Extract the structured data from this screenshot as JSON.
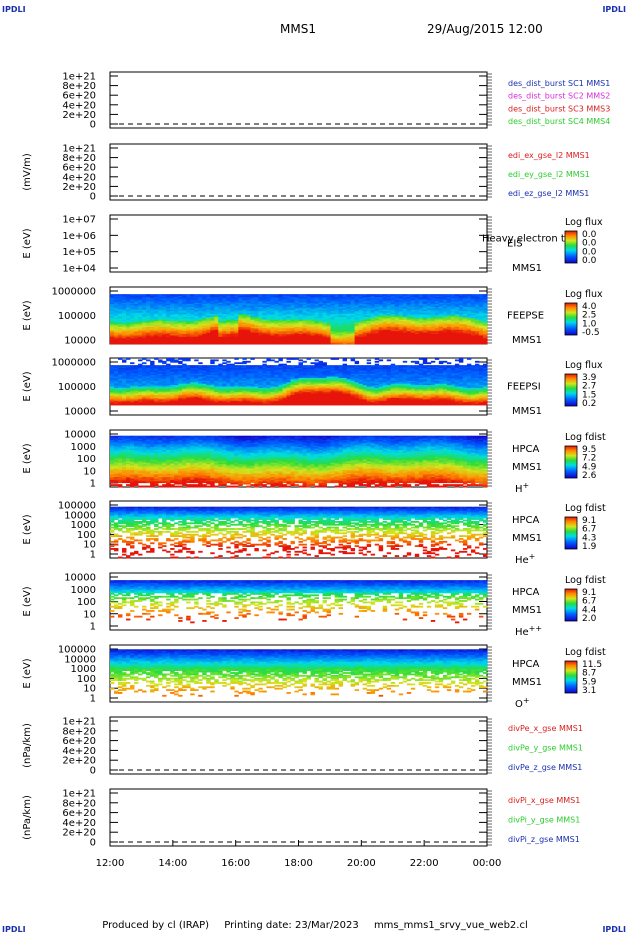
{
  "header": {
    "corner_label": "IPDLI",
    "spacecraft": "MMS1",
    "date": "29/Aug/2015 12:00"
  },
  "footer": {
    "produced": "Produced by cl (IRAP)",
    "printing": "Printing date: 23/Mar/2023",
    "file": "mms_mms1_srvy_vue_web2.cl"
  },
  "time_axis": {
    "ticks": [
      "12:00",
      "14:00",
      "16:00",
      "18:00",
      "20:00",
      "22:00",
      "00:00"
    ]
  },
  "colors": {
    "blue": "#1a2fb0",
    "magenta": "#d62dd6",
    "red": "#d81e1e",
    "green": "#2ecc2e"
  },
  "chart_data": [
    {
      "id": "p1",
      "type": "line",
      "ylabel": "",
      "yticks": [
        "1e+21",
        "8e+20",
        "6e+20",
        "4e+20",
        "2e+20",
        "0"
      ],
      "legend": [
        {
          "text": "des_dist_burst SC1 MMS1",
          "color": "#1a2fb0"
        },
        {
          "text": "des_dist_burst SC2 MMS2",
          "color": "#d62dd6"
        },
        {
          "text": "des_dist_burst SC3 MMS3",
          "color": "#d81e1e"
        },
        {
          "text": "des_dist_burst SC4 MMS4",
          "color": "#2ecc2e"
        }
      ]
    },
    {
      "id": "p2",
      "type": "line",
      "ylabel": "(mV/m)",
      "yticks": [
        "1e+21",
        "8e+20",
        "6e+20",
        "4e+20",
        "2e+20",
        "0"
      ],
      "legend": [
        {
          "text": "edi_ex_gse_l2 MMS1",
          "color": "#d81e1e"
        },
        {
          "text": "edi_ey_gse_l2 MMS1",
          "color": "#2ecc2e"
        },
        {
          "text": "edi_ez_gse_l2 MMS1",
          "color": "#1a2fb0"
        }
      ]
    },
    {
      "id": "p3",
      "type": "heatmap",
      "ylabel": "E (eV)",
      "yticks": [
        "1e+07",
        "1e+06",
        "1e+05",
        "1e+04"
      ],
      "side_labels": [
        "EIS",
        "MMS1"
      ],
      "overlay_text": "Heavy electron to",
      "cbar_title": "Log flux",
      "cbar_values": [
        "0.0",
        "0.0",
        "0.0",
        "0.0"
      ],
      "fill": "empty"
    },
    {
      "id": "p4",
      "type": "heatmap",
      "ylabel": "E (eV)",
      "yticks": [
        "1000000",
        "100000",
        "10000"
      ],
      "side_labels": [
        "FEEPSE",
        "MMS1"
      ],
      "cbar_title": "Log flux",
      "cbar_values": [
        "4.0",
        "2.5",
        "1.0",
        "-0.5"
      ],
      "fill": "feepse"
    },
    {
      "id": "p5",
      "type": "heatmap",
      "ylabel": "E (eV)",
      "yticks": [
        "1000000",
        "100000",
        "10000"
      ],
      "side_labels": [
        "FEEPSI",
        "MMS1"
      ],
      "cbar_title": "Log flux",
      "cbar_values": [
        "3.9",
        "2.7",
        "1.5",
        "0.2"
      ],
      "fill": "feepsi"
    },
    {
      "id": "p6",
      "type": "heatmap",
      "ylabel": "E (eV)",
      "yticks": [
        "10000",
        "1000",
        "100",
        "10",
        "1"
      ],
      "side_labels": [
        "HPCA",
        "MMS1",
        "H+"
      ],
      "cbar_title": "Log fdist",
      "cbar_values": [
        "9.5",
        "7.2",
        "4.9",
        "2.6"
      ],
      "fill": "hplus"
    },
    {
      "id": "p7",
      "type": "heatmap",
      "ylabel": "E (eV)",
      "yticks": [
        "100000",
        "10000",
        "1000",
        "100",
        "10",
        "1"
      ],
      "side_labels": [
        "HPCA",
        "MMS1",
        "He+"
      ],
      "cbar_title": "Log fdist",
      "cbar_values": [
        "9.1",
        "6.7",
        "4.3",
        "1.9"
      ],
      "fill": "heplus"
    },
    {
      "id": "p8",
      "type": "heatmap",
      "ylabel": "E (eV)",
      "yticks": [
        "10000",
        "1000",
        "100",
        "10",
        "1"
      ],
      "side_labels": [
        "HPCA",
        "MMS1",
        "He++"
      ],
      "cbar_title": "Log fdist",
      "cbar_values": [
        "9.1",
        "6.7",
        "4.4",
        "2.0"
      ],
      "fill": "heplusplus"
    },
    {
      "id": "p9",
      "type": "heatmap",
      "ylabel": "E (eV)",
      "yticks": [
        "100000",
        "10000",
        "1000",
        "100",
        "10",
        "1"
      ],
      "side_labels": [
        "HPCA",
        "MMS1",
        "O+"
      ],
      "cbar_title": "Log fdist",
      "cbar_values": [
        "11.5",
        "8.7",
        "5.9",
        "3.1"
      ],
      "fill": "oplus"
    },
    {
      "id": "p10",
      "type": "line",
      "ylabel": "(nPa/km)",
      "yticks": [
        "1e+21",
        "8e+20",
        "6e+20",
        "4e+20",
        "2e+20",
        "0"
      ],
      "legend": [
        {
          "text": "divPe_x_gse MMS1",
          "color": "#d81e1e"
        },
        {
          "text": "divPe_y_gse MMS1",
          "color": "#2ecc2e"
        },
        {
          "text": "divPe_z_gse MMS1",
          "color": "#1a2fb0"
        }
      ]
    },
    {
      "id": "p11",
      "type": "line",
      "ylabel": "(nPa/km)",
      "yticks": [
        "1e+21",
        "8e+20",
        "6e+20",
        "4e+20",
        "2e+20",
        "0"
      ],
      "legend": [
        {
          "text": "divPi_x_gse MMS1",
          "color": "#d81e1e"
        },
        {
          "text": "divPi_y_gse MMS1",
          "color": "#2ecc2e"
        },
        {
          "text": "divPi_z_gse MMS1",
          "color": "#1a2fb0"
        }
      ]
    }
  ]
}
